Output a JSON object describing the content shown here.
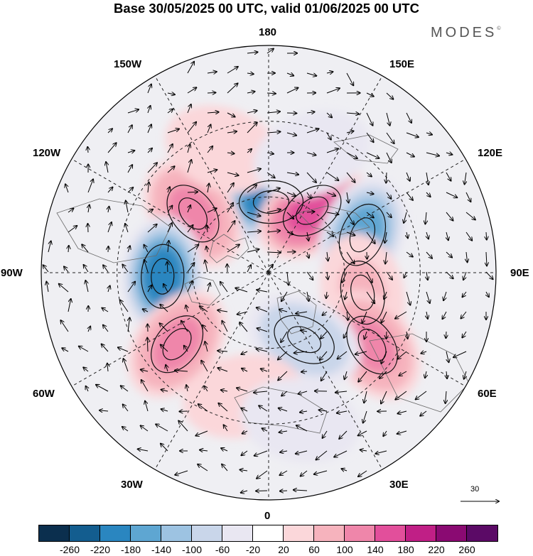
{
  "title": "Base 30/05/2025 00 UTC, valid 01/06/2025 00 UTC",
  "brand": "MODES",
  "brand_mark": "©",
  "longitude_labels": {
    "top": "180",
    "bottom": "0",
    "left": "90W",
    "right": "90E",
    "upper_left_1": "150W",
    "upper_left_2": "120W",
    "lower_left_1": "60W",
    "lower_left_2": "30W",
    "upper_right_1": "150E",
    "upper_right_2": "120E",
    "lower_right_1": "60E",
    "lower_right_2": "30E"
  },
  "vector_scale_label": "30",
  "colorbar": {
    "colors": [
      "#0b2f4e",
      "#135d8f",
      "#2a86c0",
      "#5ea6d2",
      "#9dc3e2",
      "#c9d6ea",
      "#e9e7f2",
      "#ffffff",
      "#fbd7da",
      "#f6b3bd",
      "#ef86aa",
      "#e24f9b",
      "#c01f86",
      "#8a0a72",
      "#5b0a66"
    ],
    "ticks": [
      "-260",
      "-220",
      "-180",
      "-140",
      "-100",
      "-60",
      "-20",
      "20",
      "60",
      "100",
      "140",
      "180",
      "220",
      "260"
    ]
  },
  "anomaly_centers": [
    {
      "lon": 178,
      "lat": 62,
      "value": -230
    },
    {
      "lon": -128,
      "lat": 52,
      "value": 150
    },
    {
      "lon": -88,
      "lat": 48,
      "value": -215
    },
    {
      "lon": -52,
      "lat": 44,
      "value": 160
    },
    {
      "lon": 145,
      "lat": 60,
      "value": 200
    },
    {
      "lon": 112,
      "lat": 50,
      "value": -170
    },
    {
      "lon": 78,
      "lat": 52,
      "value": 110
    },
    {
      "lon": 55,
      "lat": 40,
      "value": 150
    },
    {
      "lon": 28,
      "lat": 60,
      "value": -120
    },
    {
      "lon": -12,
      "lat": 40,
      "value": 70
    },
    {
      "lon": 12,
      "lat": 30,
      "value": -60
    },
    {
      "lon": -160,
      "lat": 38,
      "value": 60
    },
    {
      "lon": 160,
      "lat": 40,
      "value": -60
    }
  ]
}
